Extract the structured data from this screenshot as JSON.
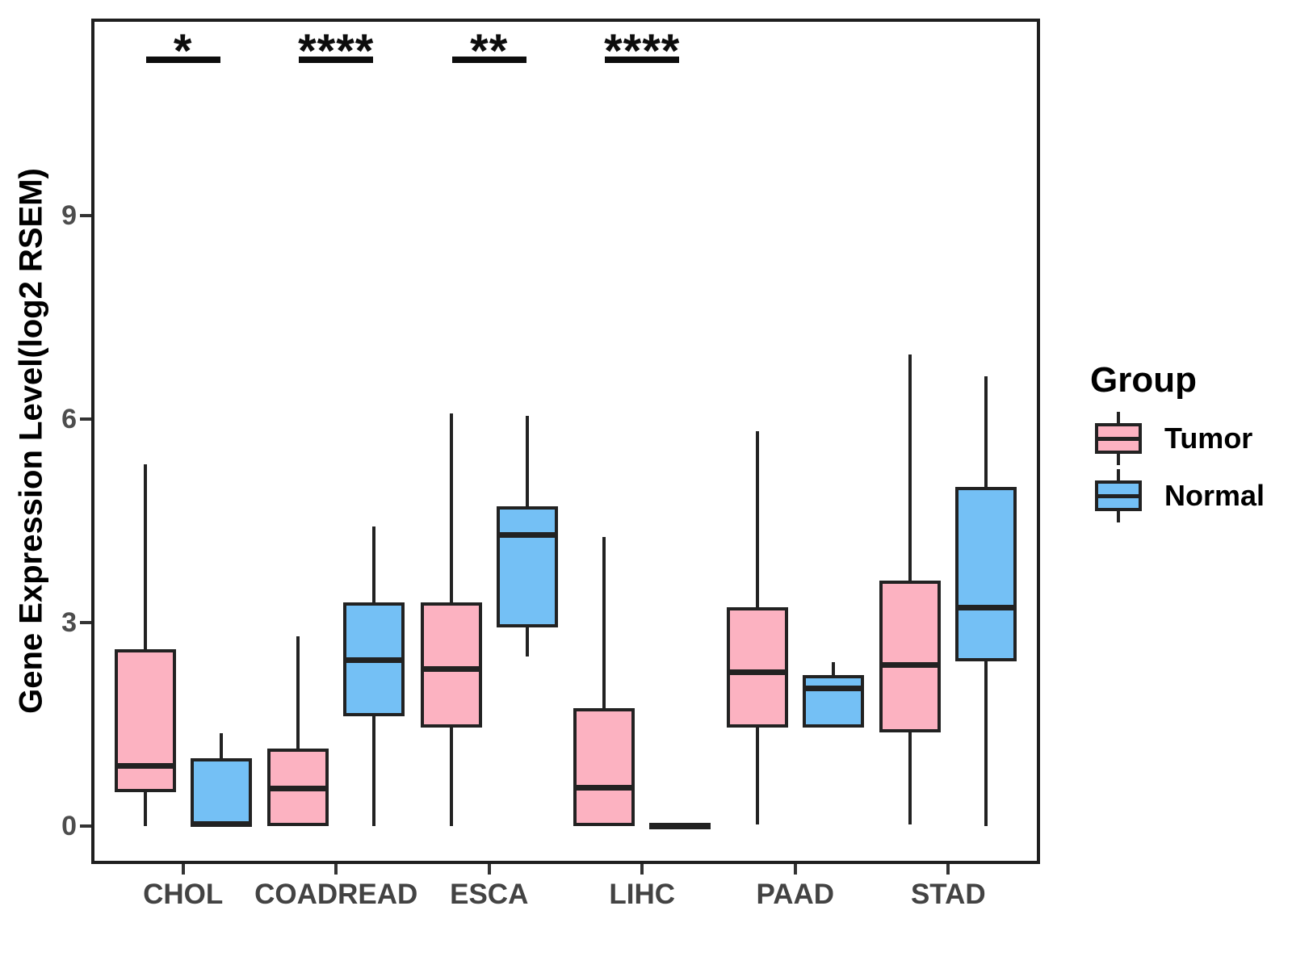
{
  "legend": {
    "title": "Group",
    "entries": [
      {
        "label": "Tumor",
        "color": "#FCB2C1"
      },
      {
        "label": "Normal",
        "color": "#74C0F5"
      }
    ]
  },
  "chart_data": {
    "type": "boxplot",
    "title": "",
    "xlabel": "",
    "ylabel": "Gene Expression Level(log2 RSEM)",
    "ylim": [
      -0.56,
      11.9
    ],
    "yticks": [
      0,
      3,
      6,
      9
    ],
    "grid": false,
    "legend_position": "right",
    "categories": [
      "CHOL",
      "COADREAD",
      "ESCA",
      "LIHC",
      "PAAD",
      "STAD"
    ],
    "series": [
      {
        "name": "Tumor",
        "color": "#FCB2C1",
        "line_color": "#222222",
        "boxes": [
          {
            "category": "CHOL",
            "min": 0,
            "q1": 0.5,
            "median": 0.89,
            "q3": 2.6,
            "max": 5.33
          },
          {
            "category": "COADREAD",
            "min": 0,
            "q1": 0,
            "median": 0.56,
            "q3": 1.14,
            "max": 2.8
          },
          {
            "category": "ESCA",
            "min": 0,
            "q1": 1.45,
            "median": 2.32,
            "q3": 3.3,
            "max": 6.08
          },
          {
            "category": "LIHC",
            "min": 0,
            "q1": 0,
            "median": 0.57,
            "q3": 1.74,
            "max": 4.26
          },
          {
            "category": "PAAD",
            "min": 0.02,
            "q1": 1.45,
            "median": 2.27,
            "q3": 3.23,
            "max": 5.82
          },
          {
            "category": "STAD",
            "min": 0.02,
            "q1": 1.38,
            "median": 2.38,
            "q3": 3.62,
            "max": 6.95
          }
        ]
      },
      {
        "name": "Normal",
        "color": "#74C0F5",
        "line_color": "#222222",
        "boxes": [
          {
            "category": "CHOL",
            "min": 0,
            "q1": 0,
            "median": 0.03,
            "q3": 1.0,
            "max": 1.37
          },
          {
            "category": "COADREAD",
            "min": 0,
            "q1": 1.62,
            "median": 2.45,
            "q3": 3.3,
            "max": 4.42
          },
          {
            "category": "ESCA",
            "min": 2.5,
            "q1": 2.93,
            "median": 4.3,
            "q3": 4.71,
            "max": 6.04
          },
          {
            "category": "LIHC",
            "min": 0,
            "q1": 0,
            "median": 0,
            "q3": 0,
            "max": 0
          },
          {
            "category": "PAAD",
            "min": 1.45,
            "q1": 1.45,
            "median": 2.04,
            "q3": 2.23,
            "max": 2.41
          },
          {
            "category": "STAD",
            "min": 0,
            "q1": 2.43,
            "median": 3.23,
            "q3": 5.0,
            "max": 6.63
          }
        ]
      }
    ],
    "significance": [
      {
        "category": "CHOL",
        "stars": "*"
      },
      {
        "category": "COADREAD",
        "stars": "****"
      },
      {
        "category": "ESCA",
        "stars": "**"
      },
      {
        "category": "LIHC",
        "stars": "****"
      }
    ]
  }
}
